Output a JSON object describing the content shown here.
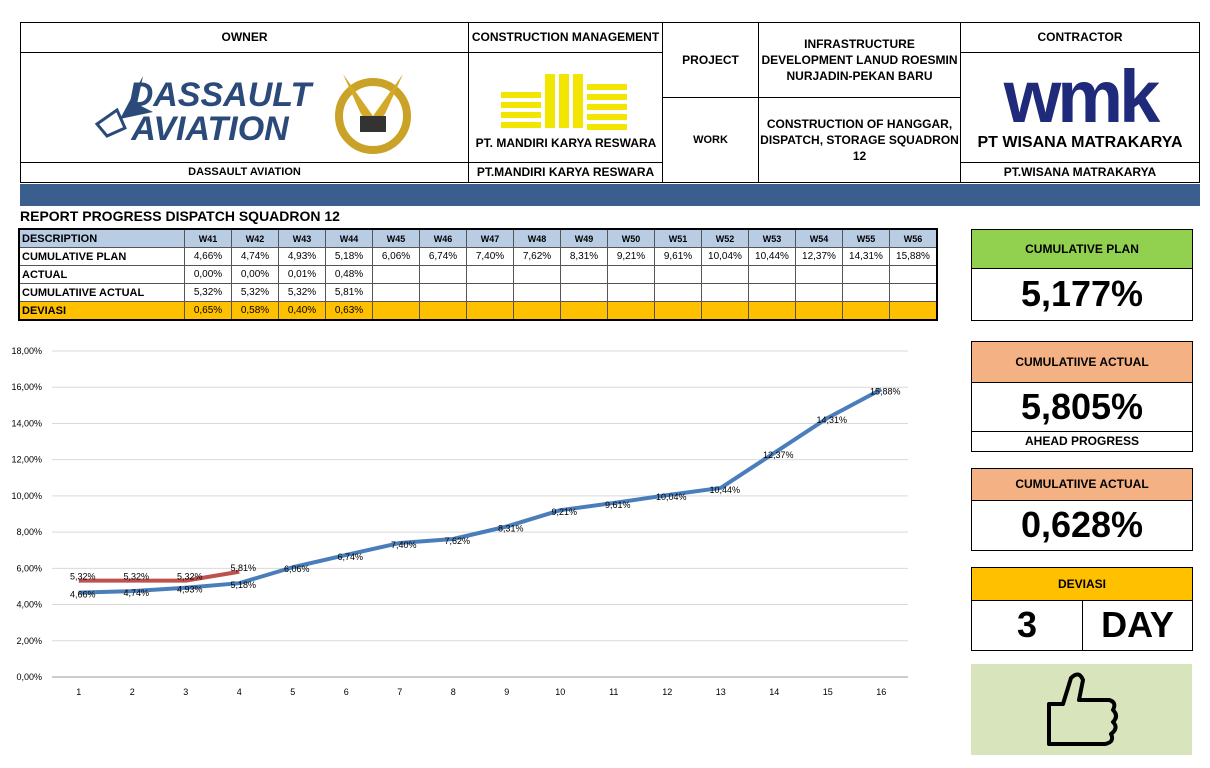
{
  "header": {
    "owner_label": "OWNER",
    "owner_logo": [
      "DASSAULT",
      "AVIATION"
    ],
    "owner_name": "DASSAULT AVIATION",
    "cm_label": "CONSTRUCTION MANAGEMENT",
    "cm_logo": "PT. MANDIRI KARYA RESWARA",
    "cm_name": "PT.MANDIRI KARYA RESWARA",
    "project_label": "PROJECT",
    "project": "INFRASTRUCTURE DEVELOPMENT LANUD ROESMIN NURJADIN-PEKAN BARU",
    "work_label": "WORK",
    "work": "CONSTRUCTION OF HANGGAR, DISPATCH, STORAGE SQUADRON 12",
    "contractor_label": "CONTRACTOR",
    "contractor_logo": "wmk",
    "contractor_logo_name": "PT WISANA MATRAKARYA",
    "contractor_name": "PT.WISANA MATRAKARYA"
  },
  "report_title": "REPORT PROGRESS DISPATCH SQUADRON 12",
  "table": {
    "header": [
      "DESCRIPTION",
      "W41",
      "W42",
      "W43",
      "W44",
      "W45",
      "W46",
      "W47",
      "W48",
      "W49",
      "W50",
      "W51",
      "W52",
      "W53",
      "W54",
      "W55",
      "W56"
    ],
    "rows": [
      [
        "CUMULATIVE PLAN",
        "4,66%",
        "4,74%",
        "4,93%",
        "5,18%",
        "6,06%",
        "6,74%",
        "7,40%",
        "7,62%",
        "8,31%",
        "9,21%",
        "9,61%",
        "10,04%",
        "10,44%",
        "12,37%",
        "14,31%",
        "15,88%"
      ],
      [
        "ACTUAL",
        "0,00%",
        "0,00%",
        "0,01%",
        "0,48%",
        null,
        null,
        null,
        null,
        null,
        null,
        null,
        null,
        null,
        null,
        null,
        null
      ],
      [
        "CUMULATIIVE ACTUAL",
        "5,32%",
        "5,32%",
        "5,32%",
        "5,81%",
        null,
        null,
        null,
        null,
        null,
        null,
        null,
        null,
        null,
        null,
        null,
        null
      ],
      [
        "DEVIASI",
        "0,65%",
        "0,58%",
        "0,40%",
        "0,63%",
        null,
        null,
        null,
        null,
        null,
        null,
        null,
        null,
        null,
        null,
        null,
        null
      ]
    ]
  },
  "kpis": {
    "plan": {
      "label": "CUMULATIVE PLAN",
      "value": "5,177%"
    },
    "actual": {
      "label": "CUMULATIIVE ACTUAL",
      "value": "5,805%",
      "note": "AHEAD PROGRESS"
    },
    "actual2": {
      "label": "CUMULATIIVE ACTUAL",
      "value": "0,628%"
    },
    "deviasi": {
      "label": "DEVIASI",
      "value": "3",
      "unit": "DAY"
    }
  },
  "chart_data": {
    "type": "line",
    "categories": [
      1,
      2,
      3,
      4,
      5,
      6,
      7,
      8,
      9,
      10,
      11,
      12,
      13,
      14,
      15,
      16
    ],
    "ylim": [
      0,
      18
    ],
    "yticks": [
      {
        "value": 0,
        "label": "0,00%"
      },
      {
        "value": 2,
        "label": "2,00%"
      },
      {
        "value": 4,
        "label": "4,00%"
      },
      {
        "value": 6,
        "label": "6,00%"
      },
      {
        "value": 8,
        "label": "8,00%"
      },
      {
        "value": 10,
        "label": "10,00%"
      },
      {
        "value": 12,
        "label": "12,00%"
      },
      {
        "value": 14,
        "label": "14,00%"
      },
      {
        "value": 16,
        "label": "16,00%"
      },
      {
        "value": 18,
        "label": "18,00%"
      }
    ],
    "grid": true,
    "series": [
      {
        "color": "#4a7ebb",
        "values": [
          4.66,
          4.74,
          4.93,
          5.18,
          6.06,
          6.74,
          7.4,
          7.62,
          8.31,
          9.21,
          9.61,
          10.04,
          10.44,
          12.37,
          14.31,
          15.88
        ],
        "value_labels": [
          "4,66%",
          "4,74%",
          "4,93%",
          "5,18%",
          "6,06%",
          "6,74%",
          "7,40%",
          "7,62%",
          "8,31%",
          "9,21%",
          "9,61%",
          "10,04%",
          "10,44%",
          "12,37%",
          "14,31%",
          "15,88%"
        ]
      },
      {
        "color": "#c0504d",
        "values": [
          5.32,
          5.32,
          5.32,
          5.81,
          null,
          null,
          null,
          null,
          null,
          null,
          null,
          null,
          null,
          null,
          null,
          null
        ],
        "value_labels": [
          "5,32%",
          "5,32%",
          "5,32%",
          "5,81%",
          null,
          null,
          null,
          null,
          null,
          null,
          null,
          null,
          null,
          null,
          null,
          null
        ]
      }
    ]
  }
}
